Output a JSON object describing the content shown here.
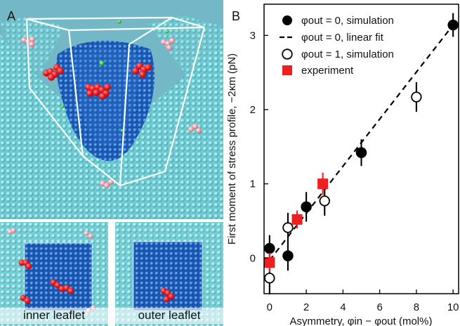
{
  "figure": {
    "panel_a": {
      "letter": "A",
      "inner_leaflet_label": "inner leaflet",
      "outer_leaflet_label": "outer leaflet"
    },
    "panel_b": {
      "letter": "B"
    }
  },
  "chart_data": {
    "type": "scatter",
    "title": "",
    "xlabel": "Asymmetry, φin − φout (mol%)",
    "ylabel": "First moment of stress profile, −2κm (pN)",
    "xlim": [
      -0.3,
      10.3
    ],
    "ylim": [
      -0.48,
      3.42
    ],
    "xticks": [
      0,
      2,
      4,
      6,
      8,
      10
    ],
    "yticks": [
      0,
      1,
      2,
      3
    ],
    "grid": false,
    "legend_position": "top-left",
    "series": [
      {
        "name": "φout = 0, simulation",
        "style": "filled-circle",
        "color": "#000000",
        "points": [
          {
            "x": 0,
            "y": 0.13,
            "err": 0.18
          },
          {
            "x": 1,
            "y": 0.03,
            "err": 0.2
          },
          {
            "x": 2,
            "y": 0.69,
            "err": 0.2
          },
          {
            "x": 5,
            "y": 1.42,
            "err": 0.18
          },
          {
            "x": 10,
            "y": 3.14,
            "err": 0.16
          }
        ]
      },
      {
        "name": "φout = 0, linear fit",
        "style": "dashed-line",
        "color": "#000000",
        "points": [
          {
            "x": 0,
            "y": -0.03
          },
          {
            "x": 10,
            "y": 3.14
          }
        ]
      },
      {
        "name": "φout = 1, simulation",
        "style": "open-circle",
        "color": "#000000",
        "points": [
          {
            "x": 0,
            "y": -0.27,
            "err": 0.22
          },
          {
            "x": 1,
            "y": 0.41,
            "err": 0.2
          },
          {
            "x": 3,
            "y": 0.77,
            "err": 0.2
          },
          {
            "x": 8,
            "y": 2.17,
            "err": 0.2
          }
        ]
      },
      {
        "name": "experiment",
        "style": "square",
        "color": "#ef1f1f",
        "points": [
          {
            "x": 0,
            "y": -0.06,
            "err": 0.13
          },
          {
            "x": 1.5,
            "y": 0.52,
            "err": 0.12
          },
          {
            "x": 2.9,
            "y": 1.0,
            "err": 0.15
          }
        ]
      }
    ]
  }
}
